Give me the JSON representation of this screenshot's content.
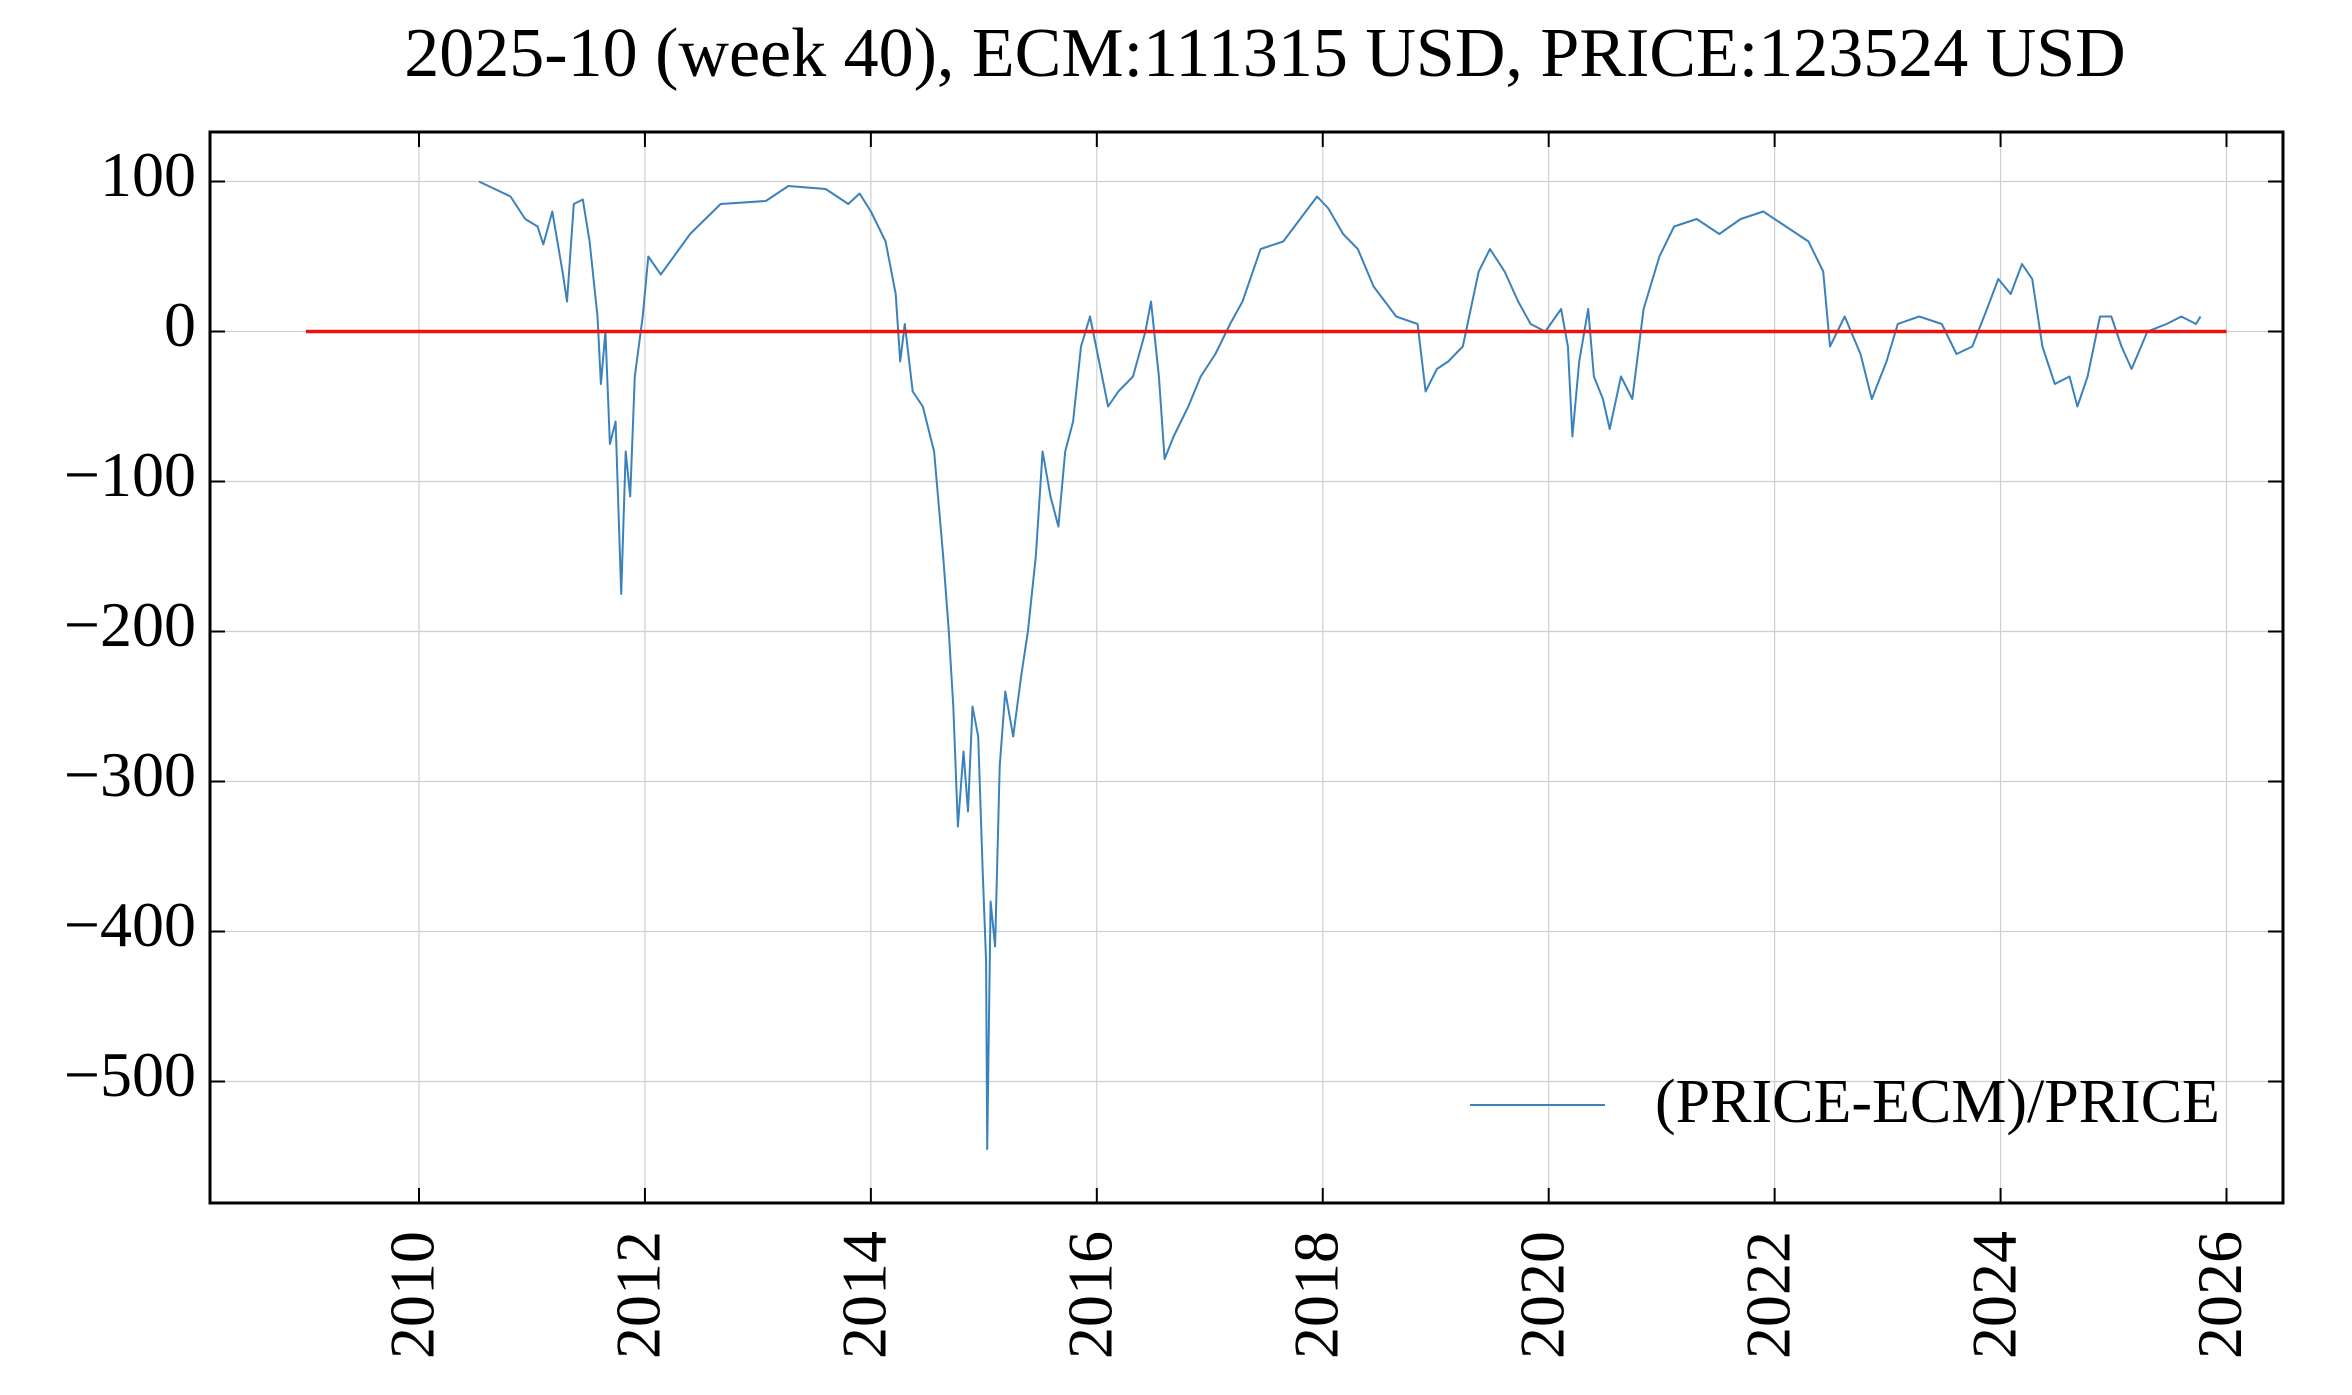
{
  "chart_data": {
    "type": "line",
    "title": "2025-10 (week 40), ECM:111315 USD, PRICE:123524 USD",
    "xlim": [
      2008.15,
      2026.5
    ],
    "ylim": [
      -581,
      133
    ],
    "xticks": [
      2010,
      2012,
      2014,
      2016,
      2018,
      2020,
      2022,
      2024,
      2026
    ],
    "yticks": [
      {
        "value": 100,
        "label": "100"
      },
      {
        "value": 0,
        "label": "0"
      },
      {
        "value": -100,
        "label": "−100"
      },
      {
        "value": -200,
        "label": "−200"
      },
      {
        "value": -300,
        "label": "−300"
      },
      {
        "value": -400,
        "label": "−400"
      },
      {
        "value": -500,
        "label": "−500"
      }
    ],
    "grid": true,
    "legend": "lower right",
    "series": [
      {
        "name": "(PRICE-ECM)/PRICE",
        "color": "#3b82bd",
        "x": [
          2010.53,
          2010.81,
          2010.94,
          2011.05,
          2011.1,
          2011.18,
          2011.27,
          2011.31,
          2011.37,
          2011.45,
          2011.51,
          2011.58,
          2011.61,
          2011.65,
          2011.69,
          2011.74,
          2011.79,
          2011.83,
          2011.87,
          2011.91,
          2011.98,
          2012.03,
          2012.14,
          2012.4,
          2012.67,
          2013.07,
          2013.27,
          2013.6,
          2013.8,
          2013.9,
          2014.0,
          2014.13,
          2014.22,
          2014.26,
          2014.3,
          2014.37,
          2014.46,
          2014.56,
          2014.64,
          2014.69,
          2014.73,
          2014.77,
          2014.82,
          2014.86,
          2014.9,
          2014.95,
          2014.99,
          2015.02,
          2015.03,
          2015.06,
          2015.1,
          2015.14,
          2015.19,
          2015.26,
          2015.33,
          2015.39,
          2015.46,
          2015.52,
          2015.59,
          2015.66,
          2015.72,
          2015.79,
          2015.86,
          2015.94,
          2016.02,
          2016.1,
          2016.19,
          2016.32,
          2016.43,
          2016.48,
          2016.55,
          2016.6,
          2016.68,
          2016.81,
          2016.92,
          2017.05,
          2017.18,
          2017.29,
          2017.45,
          2017.65,
          2017.85,
          2017.95,
          2018.05,
          2018.18,
          2018.31,
          2018.45,
          2018.65,
          2018.84,
          2018.91,
          2019.01,
          2019.11,
          2019.24,
          2019.38,
          2019.48,
          2019.61,
          2019.73,
          2019.84,
          2019.97,
          2020.11,
          2020.17,
          2020.21,
          2020.27,
          2020.35,
          2020.4,
          2020.48,
          2020.54,
          2020.64,
          2020.74,
          2020.84,
          2020.98,
          2021.11,
          2021.31,
          2021.51,
          2021.7,
          2021.9,
          2022.1,
          2022.3,
          2022.43,
          2022.49,
          2022.62,
          2022.76,
          2022.86,
          2022.99,
          2023.09,
          2023.28,
          2023.48,
          2023.61,
          2023.75,
          2023.88,
          2023.98,
          2024.09,
          2024.19,
          2024.28,
          2024.37,
          2024.48,
          2024.61,
          2024.68,
          2024.77,
          2024.88,
          2024.98,
          2025.07,
          2025.16,
          2025.3,
          2025.47,
          2025.6,
          2025.73,
          2025.77
        ],
        "values": [
          100,
          90,
          75,
          70,
          58,
          80,
          40,
          20,
          85,
          88,
          60,
          10,
          -35,
          0,
          -75,
          -60,
          -175,
          -80,
          -110,
          -30,
          10,
          50,
          38,
          65,
          85,
          87,
          97,
          95,
          85,
          92,
          80,
          60,
          25,
          -20,
          5,
          -40,
          -50,
          -80,
          -150,
          -200,
          -250,
          -330,
          -280,
          -320,
          -250,
          -270,
          -360,
          -420,
          -545,
          -380,
          -410,
          -290,
          -240,
          -270,
          -230,
          -200,
          -150,
          -80,
          -110,
          -130,
          -80,
          -60,
          -10,
          10,
          -20,
          -50,
          -40,
          -30,
          0,
          20,
          -30,
          -85,
          -70,
          -50,
          -30,
          -15,
          5,
          20,
          55,
          60,
          80,
          90,
          82,
          65,
          55,
          30,
          10,
          5,
          -40,
          -25,
          -20,
          -10,
          40,
          55,
          40,
          20,
          5,
          0,
          15,
          -10,
          -70,
          -20,
          15,
          -30,
          -45,
          -65,
          -30,
          -45,
          15,
          50,
          70,
          75,
          65,
          75,
          80,
          70,
          60,
          40,
          -10,
          10,
          -15,
          -45,
          -20,
          5,
          10,
          5,
          -15,
          -10,
          15,
          35,
          25,
          45,
          35,
          -10,
          -35,
          -30,
          -50,
          -30,
          10,
          10,
          -10,
          -25,
          0,
          5,
          10,
          5,
          10
        ]
      },
      {
        "color": "#ee1111",
        "x": [
          2009,
          2026
        ],
        "values": [
          0,
          0
        ]
      }
    ]
  }
}
